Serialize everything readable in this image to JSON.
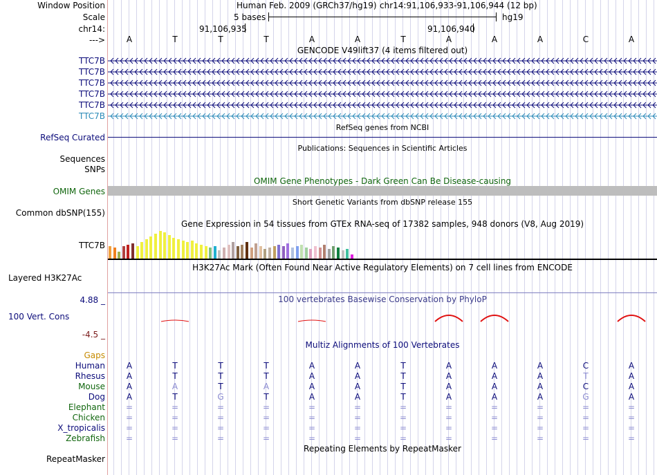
{
  "header": {
    "window_position_label": "Window Position",
    "scale_label": "Scale",
    "chrom_label": "chr14:",
    "arrow_label": "--->",
    "assembly_text": "Human Feb. 2009 (GRCh37/hg19)",
    "position_text": "chr14:91,106,933-91,106,944 (12 bp)",
    "scale_text": "5 bases",
    "scale_db": "hg19",
    "coord_left": "91,106,935",
    "coord_right": "91,106,940",
    "bases": [
      "A",
      "T",
      "T",
      "T",
      "A",
      "A",
      "T",
      "A",
      "A",
      "A",
      "C",
      "A"
    ]
  },
  "gencode": {
    "title": "GENCODE V49lift37 (4 items filtered out)",
    "rows": [
      {
        "label": "TTC7B",
        "color": "#0b0b7a"
      },
      {
        "label": "TTC7B",
        "color": "#0b0b7a"
      },
      {
        "label": "TTC7B",
        "color": "#0b0b7a"
      },
      {
        "label": "TTC7B",
        "color": "#0b0b7a"
      },
      {
        "label": "TTC7B",
        "color": "#0b0b7a"
      },
      {
        "label": "TTC7B",
        "color": "#2a8ab8"
      }
    ]
  },
  "refseq": {
    "title": "RefSeq genes from NCBI",
    "label": "RefSeq Curated"
  },
  "publications": {
    "title": "Publications: Sequences in Scientific Articles",
    "label_sequences": "Sequences",
    "label_snps": "SNPs"
  },
  "omim": {
    "title": "OMIM Gene Phenotypes - Dark Green Can Be Disease-causing",
    "label": "OMIM Genes"
  },
  "dbsnp": {
    "title": "Short Genetic Variants from dbSNP release 155",
    "label": "Common dbSNP(155)"
  },
  "gtex": {
    "title": "Gene Expression in 54 tissues from GTEx RNA-seq of 17382 samples, 948 donors (V8, Aug 2019)",
    "label": "TTC7B",
    "bars": [
      {
        "h": 18,
        "c": "#f0a040"
      },
      {
        "h": 16,
        "c": "#f08020"
      },
      {
        "h": 10,
        "c": "#a0b050"
      },
      {
        "h": 18,
        "c": "#b04040"
      },
      {
        "h": 20,
        "c": "#c02020"
      },
      {
        "h": 22,
        "c": "#803030"
      },
      {
        "h": 18,
        "c": "#f0f040"
      },
      {
        "h": 24,
        "c": "#f0f040"
      },
      {
        "h": 28,
        "c": "#f0f040"
      },
      {
        "h": 32,
        "c": "#f0f040"
      },
      {
        "h": 36,
        "c": "#f0f040"
      },
      {
        "h": 40,
        "c": "#f0f040"
      },
      {
        "h": 38,
        "c": "#f0f040"
      },
      {
        "h": 34,
        "c": "#f0f040"
      },
      {
        "h": 30,
        "c": "#f0f040"
      },
      {
        "h": 28,
        "c": "#f0f040"
      },
      {
        "h": 26,
        "c": "#f0f040"
      },
      {
        "h": 24,
        "c": "#f0f040"
      },
      {
        "h": 26,
        "c": "#f0f040"
      },
      {
        "h": 22,
        "c": "#f0f040"
      },
      {
        "h": 20,
        "c": "#f0f040"
      },
      {
        "h": 18,
        "c": "#f0f040"
      },
      {
        "h": 16,
        "c": "#80c080"
      },
      {
        "h": 18,
        "c": "#20b0d0"
      },
      {
        "h": 12,
        "c": "#c0c0c0"
      },
      {
        "h": 16,
        "c": "#d0b0b0"
      },
      {
        "h": 20,
        "c": "#e0c0c0"
      },
      {
        "h": 24,
        "c": "#b0a0a0"
      },
      {
        "h": 18,
        "c": "#806040"
      },
      {
        "h": 20,
        "c": "#a08060"
      },
      {
        "h": 24,
        "c": "#603010"
      },
      {
        "h": 16,
        "c": "#d0a080"
      },
      {
        "h": 22,
        "c": "#c0a090"
      },
      {
        "h": 18,
        "c": "#e0c0a0"
      },
      {
        "h": 14,
        "c": "#b0a080"
      },
      {
        "h": 16,
        "c": "#c0b0a0"
      },
      {
        "h": 18,
        "c": "#c0a060"
      },
      {
        "h": 20,
        "c": "#8070d0"
      },
      {
        "h": 18,
        "c": "#9060c0"
      },
      {
        "h": 22,
        "c": "#a070e0"
      },
      {
        "h": 16,
        "c": "#b0c0e0"
      },
      {
        "h": 18,
        "c": "#80a0f0"
      },
      {
        "h": 20,
        "c": "#c0e0b0"
      },
      {
        "h": 16,
        "c": "#a0d0a0"
      },
      {
        "h": 14,
        "c": "#e0a0c0"
      },
      {
        "h": 18,
        "c": "#f0c0d0"
      },
      {
        "h": 16,
        "c": "#d09090"
      },
      {
        "h": 20,
        "c": "#b08070"
      },
      {
        "h": 14,
        "c": "#a0a0a0"
      },
      {
        "h": 18,
        "c": "#70a070"
      },
      {
        "h": 16,
        "c": "#108040"
      },
      {
        "h": 12,
        "c": "#c0c0c0"
      },
      {
        "h": 14,
        "c": "#40c0a0"
      },
      {
        "h": 6,
        "c": "#e020e0"
      }
    ]
  },
  "h3k27ac": {
    "title": "H3K27Ac Mark (Often Found Near Active Regulatory Elements) on 7 cell lines from ENCODE",
    "label": "Layered H3K27Ac"
  },
  "conservation": {
    "title": "100 vertebrates Basewise Conservation by PhyloP",
    "label": "100 Vert. Cons",
    "ymax": "4.88 _",
    "ymin": "-4.5 _",
    "peaks": [
      0,
      0.15,
      0,
      0,
      0.05,
      0,
      0,
      1,
      1,
      0,
      0,
      1
    ]
  },
  "multiz": {
    "title": "Multiz Alignments of 100 Vertebrates",
    "gaps_label": "Gaps",
    "species": [
      {
        "name": "Human",
        "color": "#0b0b7a",
        "bases": [
          "A",
          "T",
          "T",
          "T",
          "A",
          "A",
          "T",
          "A",
          "A",
          "A",
          "C",
          "A"
        ],
        "muted": []
      },
      {
        "name": "Rhesus",
        "color": "#0b0b7a",
        "bases": [
          "A",
          "T",
          "T",
          "T",
          "A",
          "A",
          "T",
          "A",
          "A",
          "A",
          "T",
          "A"
        ],
        "muted": [
          10
        ]
      },
      {
        "name": "Mouse",
        "color": "#11660e",
        "bases": [
          "A",
          "A",
          "T",
          "A",
          "A",
          "A",
          "T",
          "A",
          "A",
          "A",
          "C",
          "A"
        ],
        "muted": [
          1,
          3
        ]
      },
      {
        "name": "Dog",
        "color": "#0b0b7a",
        "bases": [
          "A",
          "T",
          "G",
          "T",
          "A",
          "A",
          "T",
          "A",
          "A",
          "A",
          "G",
          "A"
        ],
        "muted": [
          2,
          10
        ]
      },
      {
        "name": "Elephant",
        "color": "#11660e",
        "bases": [
          "=",
          "=",
          "=",
          "=",
          "=",
          "=",
          "=",
          "=",
          "=",
          "=",
          "=",
          "="
        ],
        "muted": []
      },
      {
        "name": "Chicken",
        "color": "#11660e",
        "bases": [
          "=",
          "=",
          "=",
          "=",
          "=",
          "=",
          "=",
          "=",
          "=",
          "=",
          "=",
          "="
        ],
        "muted": []
      },
      {
        "name": "X_tropicalis",
        "color": "#0b0b7a",
        "bases": [
          "=",
          "=",
          "=",
          "=",
          "=",
          "=",
          "=",
          "=",
          "=",
          "=",
          "=",
          "="
        ],
        "muted": []
      },
      {
        "name": "Zebrafish",
        "color": "#11660e",
        "bases": [
          "=",
          "=",
          "=",
          "=",
          "=",
          "=",
          "=",
          "=",
          "=",
          "=",
          "=",
          "="
        ],
        "muted": []
      }
    ]
  },
  "repeatmasker": {
    "title": "Repeating Elements by RepeatMasker",
    "label": "RepeatMasker"
  }
}
